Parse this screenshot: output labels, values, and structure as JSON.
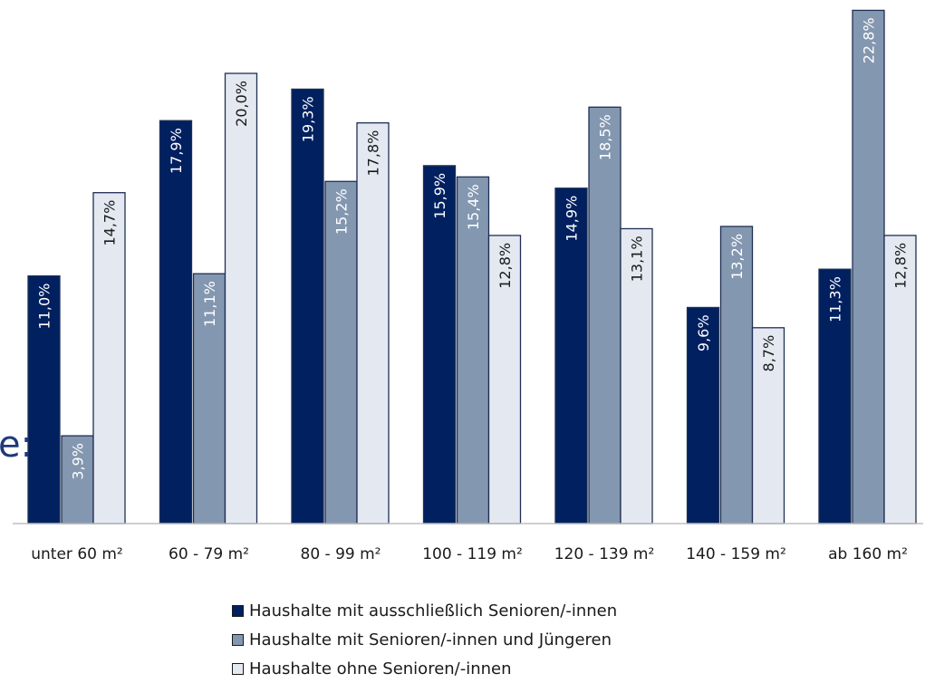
{
  "chart_data": {
    "type": "bar",
    "title": "",
    "xlabel": "",
    "ylabel": "",
    "ylim": [
      0,
      22.8
    ],
    "grid": false,
    "legend_position": "bottom",
    "categories": [
      "unter 60 m²",
      "60 - 79 m²",
      "80 - 99 m²",
      "100 - 119 m²",
      "120 - 139 m²",
      "140 - 159 m²",
      "ab 160 m²"
    ],
    "series": [
      {
        "name": "Haushalte mit ausschließlich Senioren/-innen",
        "color": "#002060",
        "label_color": "#ffffff",
        "values": [
          11.0,
          17.9,
          19.3,
          15.9,
          14.9,
          9.6,
          11.3
        ],
        "labels": [
          "11,0%",
          "17,9%",
          "19,3%",
          "15,9%",
          "14,9%",
          "9,6%",
          "11,3%"
        ]
      },
      {
        "name": "Haushalte mit Senioren/-innen und Jüngeren",
        "color": "#8497b0",
        "label_color": "#ffffff",
        "values": [
          3.9,
          11.1,
          15.2,
          15.4,
          18.5,
          13.2,
          22.8
        ],
        "labels": [
          "3,9%",
          "11,1%",
          "15,2%",
          "15,4%",
          "18,5%",
          "13,2%",
          "22,8%"
        ]
      },
      {
        "name": "Haushalte ohne Senioren/-innen",
        "color": "#e4e8f1",
        "label_color": "#1a1a1a",
        "values": [
          14.7,
          20.0,
          17.8,
          12.8,
          13.1,
          8.7,
          12.8
        ],
        "labels": [
          "14,7%",
          "20,0%",
          "17,8%",
          "12,8%",
          "13,1%",
          "8,7%",
          "12,8%"
        ]
      }
    ]
  },
  "page": {
    "side_fragment": "e:"
  }
}
